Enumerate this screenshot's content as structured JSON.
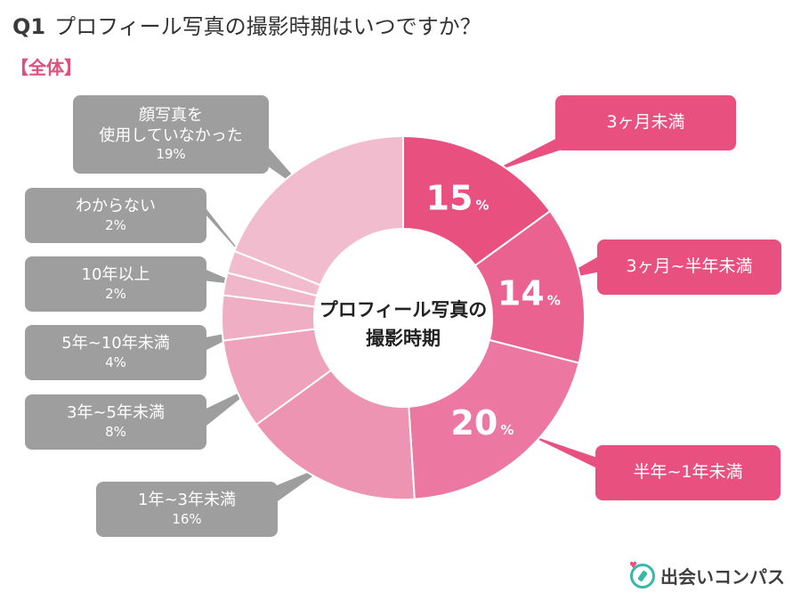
{
  "header": {
    "qnum": "Q1",
    "question": "プロフィール写真の撮影時期はいつですか？"
  },
  "segment_label": "【全体】",
  "center_label": [
    "プロフィール写真の",
    "撮影時期"
  ],
  "logo": {
    "text": "出会いコンパス",
    "icon": "compass-icon"
  },
  "colors": {
    "pink_callout": "#e8517f",
    "gray_callout": "#9e9e9e",
    "accent_text": "#e0507f",
    "logo_teal": "#35b9a6"
  },
  "chart_data": {
    "type": "pie",
    "donut": true,
    "title": "プロフィール写真の撮影時期",
    "slices": [
      {
        "label": "3ヶ月未満",
        "value": 15,
        "pct_label": "15",
        "color": "#e8517f"
      },
      {
        "label": "3ヶ月~半年未満",
        "value": 14,
        "pct_label": "14",
        "color": "#ea6290"
      },
      {
        "label": "半年~1年未満",
        "value": 20,
        "pct_label": "20",
        "color": "#ec77a0"
      },
      {
        "label": "1年~3年未満",
        "value": 16,
        "pct_label": "16%",
        "color": "#ed94b2"
      },
      {
        "label": "3年~5年未満",
        "value": 8,
        "pct_label": "8%",
        "color": "#eea2bb"
      },
      {
        "label": "5年~10年未満",
        "value": 4,
        "pct_label": "4%",
        "color": "#efaec4"
      },
      {
        "label": "10年以上",
        "value": 2,
        "pct_label": "2%",
        "color": "#f0b6ca"
      },
      {
        "label": "わからない",
        "value": 2,
        "pct_label": "2%",
        "color": "#f1bcce"
      },
      {
        "label": "顔写真を使用していなかった",
        "label_lines": [
          "顔写真を",
          "使用していなかった"
        ],
        "value": 19,
        "pct_label": "19%",
        "color": "#f2bccf"
      }
    ],
    "percent_suffix": "%"
  }
}
